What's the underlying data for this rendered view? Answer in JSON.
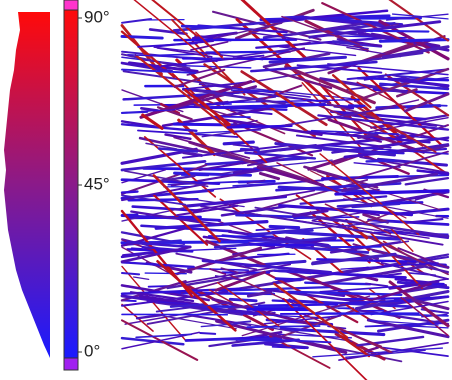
{
  "colorbar": {
    "ticks": [
      {
        "value": 90,
        "label": "90°"
      },
      {
        "value": 45,
        "label": "45°"
      },
      {
        "value": 0,
        "label": "0°"
      }
    ]
  }
}
